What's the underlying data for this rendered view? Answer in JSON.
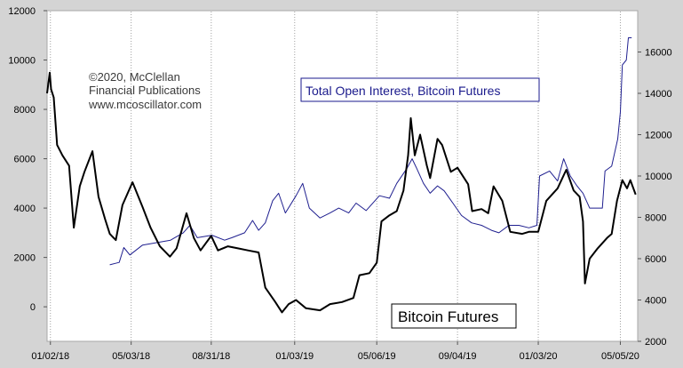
{
  "chart_data": {
    "type": "line",
    "title": "",
    "annotations": {
      "copyright": [
        "©2020, McClellan",
        "Financial Publications",
        "www.mcoscillator.com"
      ]
    },
    "colors": {
      "open_interest": "#1f1f8f",
      "futures": "#000000",
      "plot_bg": "#ffffff",
      "frame_bg": "#d4d4d4"
    },
    "x_axis": {
      "type": "date",
      "range": [
        "2017-12-28",
        "2020-05-31"
      ],
      "tick_labels": [
        "01/02/18",
        "05/03/18",
        "08/31/18",
        "01/03/19",
        "05/06/19",
        "09/04/19",
        "01/03/20",
        "05/05/20"
      ],
      "tick_dates": [
        "2018-01-02",
        "2018-05-03",
        "2018-08-31",
        "2019-01-03",
        "2019-05-06",
        "2019-09-04",
        "2020-01-03",
        "2020-05-05"
      ]
    },
    "y_left": {
      "range": [
        -1400,
        12000
      ],
      "ticks": [
        0,
        2000,
        4000,
        6000,
        8000,
        10000,
        12000
      ],
      "tick_labels": [
        "0",
        "2000",
        "4000",
        "6000",
        "8000",
        "10000",
        "12000"
      ]
    },
    "y_right": {
      "range": [
        2000,
        18000
      ],
      "ticks": [
        2000,
        4000,
        6000,
        8000,
        10000,
        12000,
        14000,
        16000
      ],
      "tick_labels": [
        "2000",
        "4000",
        "6000",
        "8000",
        "10000",
        "12000",
        "14000",
        "16000"
      ]
    },
    "grid": {
      "vertical_dotted": true,
      "horizontal": false
    },
    "series": [
      {
        "name": "Total Open Interest, Bitcoin Futures",
        "axis": "left",
        "color": "#1f1f8f",
        "points": [
          [
            "2018-04-01",
            1700
          ],
          [
            "2018-04-15",
            1800
          ],
          [
            "2018-04-22",
            2400
          ],
          [
            "2018-05-01",
            2100
          ],
          [
            "2018-05-20",
            2500
          ],
          [
            "2018-06-10",
            2600
          ],
          [
            "2018-07-01",
            2700
          ],
          [
            "2018-07-20",
            3000
          ],
          [
            "2018-07-30",
            3300
          ],
          [
            "2018-08-10",
            2800
          ],
          [
            "2018-09-01",
            2900
          ],
          [
            "2018-09-20",
            2700
          ],
          [
            "2018-10-01",
            2800
          ],
          [
            "2018-10-20",
            3000
          ],
          [
            "2018-11-01",
            3500
          ],
          [
            "2018-11-10",
            3100
          ],
          [
            "2018-11-20",
            3400
          ],
          [
            "2018-12-01",
            4300
          ],
          [
            "2018-12-10",
            4600
          ],
          [
            "2018-12-20",
            3800
          ],
          [
            "2019-01-05",
            4500
          ],
          [
            "2019-01-15",
            5000
          ],
          [
            "2019-01-25",
            4000
          ],
          [
            "2019-02-10",
            3600
          ],
          [
            "2019-02-25",
            3800
          ],
          [
            "2019-03-10",
            4000
          ],
          [
            "2019-03-25",
            3800
          ],
          [
            "2019-04-05",
            4200
          ],
          [
            "2019-04-20",
            3900
          ],
          [
            "2019-05-10",
            4500
          ],
          [
            "2019-05-25",
            4400
          ],
          [
            "2019-06-05",
            5000
          ],
          [
            "2019-06-20",
            5600
          ],
          [
            "2019-06-28",
            6000
          ],
          [
            "2019-07-05",
            5600
          ],
          [
            "2019-07-15",
            5000
          ],
          [
            "2019-07-25",
            4600
          ],
          [
            "2019-08-05",
            4900
          ],
          [
            "2019-08-15",
            4700
          ],
          [
            "2019-08-28",
            4200
          ],
          [
            "2019-09-10",
            3700
          ],
          [
            "2019-09-25",
            3400
          ],
          [
            "2019-10-10",
            3300
          ],
          [
            "2019-10-25",
            3100
          ],
          [
            "2019-11-05",
            3000
          ],
          [
            "2019-11-20",
            3300
          ],
          [
            "2019-12-05",
            3300
          ],
          [
            "2019-12-20",
            3200
          ],
          [
            "2020-01-01",
            3300
          ],
          [
            "2020-01-05",
            5300
          ],
          [
            "2020-01-20",
            5500
          ],
          [
            "2020-02-01",
            5100
          ],
          [
            "2020-02-10",
            6000
          ],
          [
            "2020-02-20",
            5300
          ],
          [
            "2020-03-01",
            4900
          ],
          [
            "2020-03-10",
            4600
          ],
          [
            "2020-03-20",
            4000
          ],
          [
            "2020-04-01",
            4000
          ],
          [
            "2020-04-08",
            4000
          ],
          [
            "2020-04-12",
            5500
          ],
          [
            "2020-04-22",
            5700
          ],
          [
            "2020-05-01",
            6800
          ],
          [
            "2020-05-05",
            7900
          ],
          [
            "2020-05-08",
            9800
          ],
          [
            "2020-05-14",
            10000
          ],
          [
            "2020-05-17",
            10900
          ],
          [
            "2020-05-22",
            10900
          ]
        ]
      },
      {
        "name": "Bitcoin Futures",
        "axis": "right",
        "color": "#000000",
        "points": [
          [
            "2017-12-28",
            14000
          ],
          [
            "2018-01-01",
            15000
          ],
          [
            "2018-01-03",
            14200
          ],
          [
            "2018-01-07",
            13800
          ],
          [
            "2018-01-12",
            11500
          ],
          [
            "2018-01-20",
            11000
          ],
          [
            "2018-01-30",
            10500
          ],
          [
            "2018-02-06",
            7500
          ],
          [
            "2018-02-15",
            9500
          ],
          [
            "2018-02-22",
            10200
          ],
          [
            "2018-03-06",
            11200
          ],
          [
            "2018-03-15",
            9000
          ],
          [
            "2018-03-25",
            7900
          ],
          [
            "2018-04-01",
            7200
          ],
          [
            "2018-04-10",
            6900
          ],
          [
            "2018-04-20",
            8600
          ],
          [
            "2018-05-05",
            9700
          ],
          [
            "2018-05-20",
            8500
          ],
          [
            "2018-06-01",
            7500
          ],
          [
            "2018-06-15",
            6600
          ],
          [
            "2018-06-30",
            6100
          ],
          [
            "2018-07-10",
            6500
          ],
          [
            "2018-07-25",
            8200
          ],
          [
            "2018-08-05",
            7000
          ],
          [
            "2018-08-15",
            6400
          ],
          [
            "2018-08-31",
            7100
          ],
          [
            "2018-09-10",
            6400
          ],
          [
            "2018-09-25",
            6600
          ],
          [
            "2018-10-10",
            6500
          ],
          [
            "2018-10-25",
            6400
          ],
          [
            "2018-11-10",
            6300
          ],
          [
            "2018-11-20",
            4600
          ],
          [
            "2018-12-05",
            3900
          ],
          [
            "2018-12-15",
            3400
          ],
          [
            "2018-12-25",
            3800
          ],
          [
            "2019-01-05",
            4000
          ],
          [
            "2019-01-20",
            3600
          ],
          [
            "2019-02-10",
            3500
          ],
          [
            "2019-02-25",
            3800
          ],
          [
            "2019-03-15",
            3900
          ],
          [
            "2019-04-01",
            4100
          ],
          [
            "2019-04-10",
            5200
          ],
          [
            "2019-04-25",
            5300
          ],
          [
            "2019-05-06",
            5800
          ],
          [
            "2019-05-13",
            7800
          ],
          [
            "2019-05-25",
            8100
          ],
          [
            "2019-06-05",
            8300
          ],
          [
            "2019-06-15",
            9300
          ],
          [
            "2019-06-22",
            11000
          ],
          [
            "2019-06-26",
            12800
          ],
          [
            "2019-07-02",
            11000
          ],
          [
            "2019-07-10",
            12000
          ],
          [
            "2019-07-20",
            10500
          ],
          [
            "2019-07-25",
            9900
          ],
          [
            "2019-08-05",
            11800
          ],
          [
            "2019-08-12",
            11500
          ],
          [
            "2019-08-25",
            10200
          ],
          [
            "2019-09-04",
            10400
          ],
          [
            "2019-09-20",
            9600
          ],
          [
            "2019-09-26",
            8300
          ],
          [
            "2019-10-10",
            8400
          ],
          [
            "2019-10-20",
            8200
          ],
          [
            "2019-10-28",
            9500
          ],
          [
            "2019-11-10",
            8800
          ],
          [
            "2019-11-22",
            7300
          ],
          [
            "2019-12-10",
            7200
          ],
          [
            "2019-12-20",
            7300
          ],
          [
            "2020-01-03",
            7300
          ],
          [
            "2020-01-15",
            8800
          ],
          [
            "2020-02-01",
            9400
          ],
          [
            "2020-02-14",
            10300
          ],
          [
            "2020-02-25",
            9300
          ],
          [
            "2020-03-05",
            9000
          ],
          [
            "2020-03-10",
            7800
          ],
          [
            "2020-03-13",
            4800
          ],
          [
            "2020-03-20",
            6000
          ],
          [
            "2020-04-01",
            6500
          ],
          [
            "2020-04-15",
            7000
          ],
          [
            "2020-04-22",
            7200
          ],
          [
            "2020-04-30",
            8800
          ],
          [
            "2020-05-08",
            9800
          ],
          [
            "2020-05-15",
            9400
          ],
          [
            "2020-05-20",
            9800
          ],
          [
            "2020-05-28",
            9100
          ]
        ]
      }
    ],
    "labels": [
      {
        "text": "Total Open Interest, Bitcoin Futures",
        "boxed": true
      },
      {
        "text": "Bitcoin Futures",
        "boxed": true
      }
    ]
  }
}
